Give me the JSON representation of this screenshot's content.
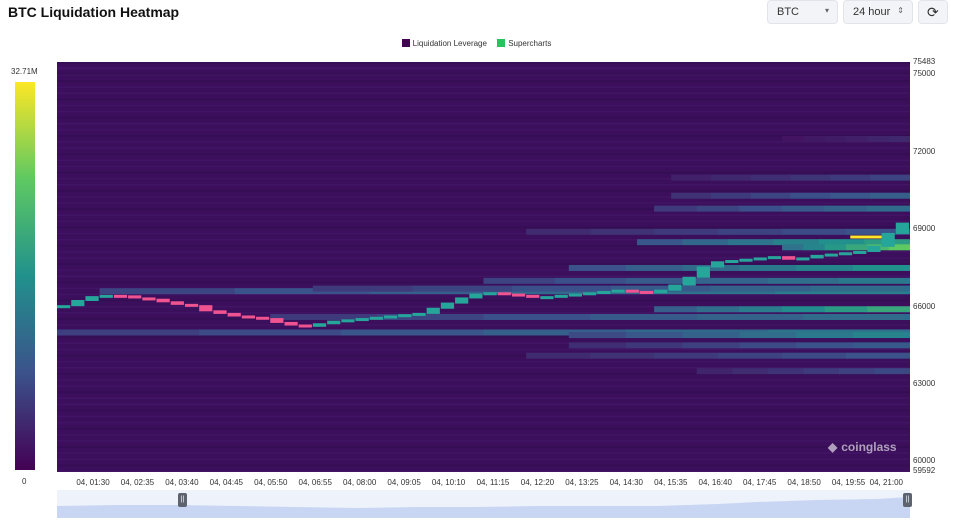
{
  "header": {
    "title": "BTC Liquidation Heatmap",
    "coin_select": "BTC",
    "range_select": "24 hour",
    "refresh_icon": "refresh-icon"
  },
  "legend": {
    "items": [
      {
        "label": "Liquidation Leverage",
        "color": "#440154"
      },
      {
        "label": "Supercharts",
        "color": "#22c55e"
      }
    ]
  },
  "colorbar": {
    "max_label": "32.71M",
    "min_label": "0"
  },
  "watermark": "coinglass",
  "chart_data": {
    "type": "heatmap",
    "title": "",
    "legend": [
      "Liquidation Leverage",
      "Supercharts"
    ],
    "legend_position": "top-center",
    "x_tick_labels": [
      "04, 01:30",
      "04, 02:35",
      "04, 03:40",
      "04, 04:45",
      "04, 05:50",
      "04, 06:55",
      "04, 08:00",
      "04, 09:05",
      "04, 10:10",
      "04, 11:15",
      "04, 12:20",
      "04, 13:25",
      "04, 14:30",
      "04, 15:35",
      "04, 16:40",
      "04, 17:45",
      "04, 18:50",
      "04, 19:55",
      "04, 21:00"
    ],
    "y_tick_labels": [
      "75483",
      "75000",
      "72000",
      "69000",
      "66000",
      "63000",
      "60000",
      "59592"
    ],
    "y_range": [
      59592,
      75483
    ],
    "colorbar_range": [
      0,
      32710000
    ],
    "price_path": [
      66000,
      66200,
      66350,
      66400,
      66380,
      66300,
      66250,
      66150,
      66050,
      66000,
      65800,
      65700,
      65600,
      65550,
      65500,
      65350,
      65250,
      65200,
      65300,
      65400,
      65450,
      65500,
      65550,
      65600,
      65650,
      65700,
      65900,
      66100,
      66300,
      66450,
      66500,
      66450,
      66400,
      66350,
      66350,
      66400,
      66450,
      66500,
      66550,
      66600,
      66550,
      66500,
      66600,
      66800,
      67100,
      67500,
      67700,
      67750,
      67800,
      67850,
      67900,
      67800,
      67850,
      67950,
      68000,
      68050,
      68100,
      68300,
      68800,
      69200
    ],
    "liquidation_bands": [
      {
        "price": 68500,
        "intensity": 0.55,
        "start": 0.68
      },
      {
        "price": 68300,
        "intensity": 0.75,
        "start": 0.85
      },
      {
        "price": 67500,
        "intensity": 0.5,
        "start": 0.6
      },
      {
        "price": 67000,
        "intensity": 0.4,
        "start": 0.5
      },
      {
        "price": 66600,
        "intensity": 0.42,
        "start": 0.05
      },
      {
        "price": 66700,
        "intensity": 0.35,
        "start": 0.3
      },
      {
        "price": 65900,
        "intensity": 0.6,
        "start": 0.7
      },
      {
        "price": 65600,
        "intensity": 0.35,
        "start": 0.25
      },
      {
        "price": 65000,
        "intensity": 0.38,
        "start": 0.0
      },
      {
        "price": 64900,
        "intensity": 0.45,
        "start": 0.6
      },
      {
        "price": 64500,
        "intensity": 0.28,
        "start": 0.6
      },
      {
        "price": 64100,
        "intensity": 0.25,
        "start": 0.55
      },
      {
        "price": 63500,
        "intensity": 0.22,
        "start": 0.75
      },
      {
        "price": 70300,
        "intensity": 0.3,
        "start": 0.72
      },
      {
        "price": 71000,
        "intensity": 0.2,
        "start": 0.72
      },
      {
        "price": 69800,
        "intensity": 0.35,
        "start": 0.7
      },
      {
        "price": 72500,
        "intensity": 0.12,
        "start": 0.85
      },
      {
        "price": 68900,
        "intensity": 0.25,
        "start": 0.55
      }
    ],
    "hotspot": {
      "price": 68700,
      "x_start": 0.93,
      "x_end": 0.975,
      "intensity": 1.0
    }
  }
}
